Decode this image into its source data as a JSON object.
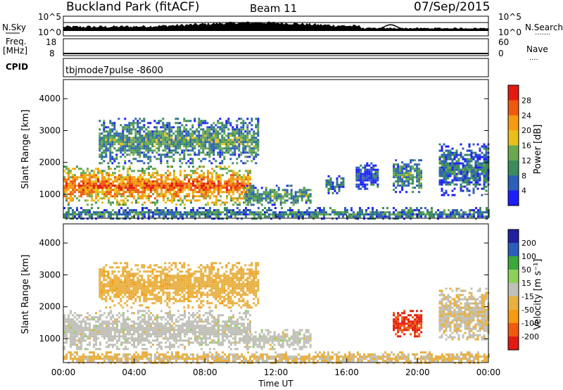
{
  "header": {
    "station": "Buckland Park (fitACF)",
    "beam": "Beam 11",
    "date": "07/Sep/2015"
  },
  "scan_info": {
    "nsky_label": "N.Sky",
    "nsearch_label": "N.Search",
    "nsearch_dots": ".......",
    "noise_ticks": [
      "10^5",
      "10^0"
    ],
    "freq_label": "Freq.",
    "freq_unit": "[MHz]",
    "freq_ticks": [
      "18",
      "8"
    ],
    "nave_label": "Nave",
    "nave_dots": "....",
    "nave_ticks": [
      "60",
      "0"
    ],
    "cpid_label": "CPID",
    "cpid_value": "tbjmode7pulse  -8600"
  },
  "colors": {
    "power_scale": [
      "#1d1dff",
      "#2b5fb8",
      "#3a8c5a",
      "#6aa84f",
      "#e8c019",
      "#f59a12",
      "#ef5a10",
      "#e21a10"
    ],
    "velocity_scale": [
      "#e21a10",
      "#ef5a10",
      "#f59a12",
      "#e8b040",
      "#c0c0b8",
      "#8fd05a",
      "#3aa83a",
      "#2b5fb8",
      "#2020a0"
    ]
  },
  "chart_data": [
    {
      "type": "heatmap",
      "panel": "power",
      "ylabel": "Slant Range [km]",
      "yticks": [
        "4000",
        "3000",
        "2000",
        "1000"
      ],
      "ylim": [
        250,
        4600
      ],
      "xlim": [
        0,
        24
      ],
      "colorbar_label": "Power [dB]",
      "colorbar_ticks": [
        "28",
        "24",
        "20",
        "16",
        "12",
        "8",
        "4"
      ],
      "colorbar_range": [
        0,
        32
      ],
      "echo_regions": [
        {
          "t_start": 0.0,
          "t_end": 10.5,
          "range_min": 700,
          "range_max": 1900,
          "power_db": 26
        },
        {
          "t_start": 10.2,
          "t_end": 14.0,
          "range_min": 700,
          "range_max": 1300,
          "power_db": 12
        },
        {
          "t_start": 2.0,
          "t_end": 11.0,
          "range_min": 2000,
          "range_max": 3400,
          "power_db": 12
        },
        {
          "t_start": 14.8,
          "t_end": 15.8,
          "range_min": 1000,
          "range_max": 1600,
          "power_db": 8
        },
        {
          "t_start": 16.5,
          "t_end": 17.8,
          "range_min": 1200,
          "range_max": 2000,
          "power_db": 6
        },
        {
          "t_start": 18.6,
          "t_end": 20.2,
          "range_min": 1100,
          "range_max": 2100,
          "power_db": 12
        },
        {
          "t_start": 21.2,
          "t_end": 24.0,
          "range_min": 1000,
          "range_max": 2600,
          "power_db": 8
        },
        {
          "t_start": 0.0,
          "t_end": 24.0,
          "range_min": 250,
          "range_max": 600,
          "power_db": 10
        }
      ]
    },
    {
      "type": "heatmap",
      "panel": "velocity",
      "ylabel": "Slant Range [km]",
      "yticks": [
        "4000",
        "3000",
        "2000",
        "1000"
      ],
      "ylim": [
        250,
        4600
      ],
      "xlim": [
        0,
        24
      ],
      "colorbar_label": "Velocity [m s⁻¹]",
      "colorbar_ticks": [
        "200",
        "100",
        "50",
        "15",
        "-15",
        "-50",
        "-100",
        "-200"
      ],
      "colorbar_range": [
        -250,
        250
      ],
      "xticks": [
        "00:00",
        "04:00",
        "08:00",
        "12:00",
        "16:00",
        "20:00",
        "00:00"
      ],
      "xlabel": "Time UT",
      "echo_regions": [
        {
          "t_start": 0.0,
          "t_end": 10.5,
          "range_min": 700,
          "range_max": 1900,
          "velocity": 0
        },
        {
          "t_start": 10.2,
          "t_end": 14.0,
          "range_min": 700,
          "range_max": 1300,
          "velocity": 0
        },
        {
          "t_start": 2.0,
          "t_end": 11.0,
          "range_min": 2000,
          "range_max": 3400,
          "velocity": -60
        },
        {
          "t_start": 18.6,
          "t_end": 20.2,
          "range_min": 1100,
          "range_max": 1900,
          "velocity": -200
        },
        {
          "t_start": 21.2,
          "t_end": 24.0,
          "range_min": 1000,
          "range_max": 2600,
          "velocity": -20
        },
        {
          "t_start": 0.0,
          "t_end": 24.0,
          "range_min": 250,
          "range_max": 600,
          "velocity": -40
        }
      ]
    }
  ]
}
